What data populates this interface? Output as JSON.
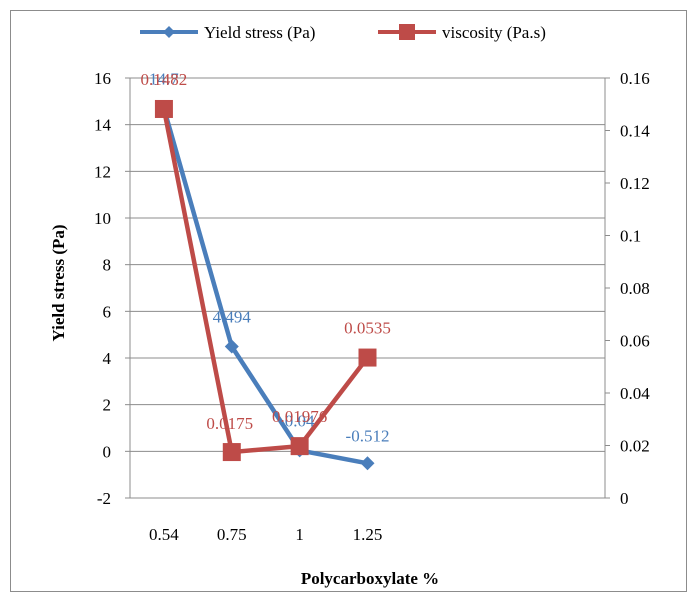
{
  "chart_data": {
    "type": "line",
    "title": "",
    "xlabel": "Polycarboxylate %",
    "ylabel": "Yield stress (Pa)",
    "y2label": "",
    "categories": [
      "0.54",
      "0.75",
      "1",
      "1.25"
    ],
    "yticks": [
      "-2",
      "0",
      "2",
      "4",
      "6",
      "8",
      "10",
      "12",
      "14",
      "16"
    ],
    "y2ticks": [
      "0",
      "0.02",
      "0.04",
      "0.06",
      "0.08",
      "0.1",
      "0.12",
      "0.14",
      "0.16"
    ],
    "ylim": [
      -2,
      16
    ],
    "y2lim": [
      0,
      0.16
    ],
    "grid": true,
    "legend_position": "top",
    "series": [
      {
        "name": "Yield stress (Pa)",
        "axis": "left",
        "marker": "diamond",
        "color": "#4a7ebb",
        "values": [
          14.7,
          4.494,
          0.04,
          -0.512
        ],
        "labels": [
          "14.7",
          "4.494",
          "0.04",
          "-0.512"
        ]
      },
      {
        "name": "viscosity (Pa.s)",
        "axis": "right",
        "marker": "square",
        "color": "#be4b48",
        "values": [
          0.1482,
          0.0175,
          0.01976,
          0.0535
        ],
        "labels": [
          "0.1482",
          "0.0175",
          "0.01976",
          "0.0535"
        ]
      }
    ]
  }
}
